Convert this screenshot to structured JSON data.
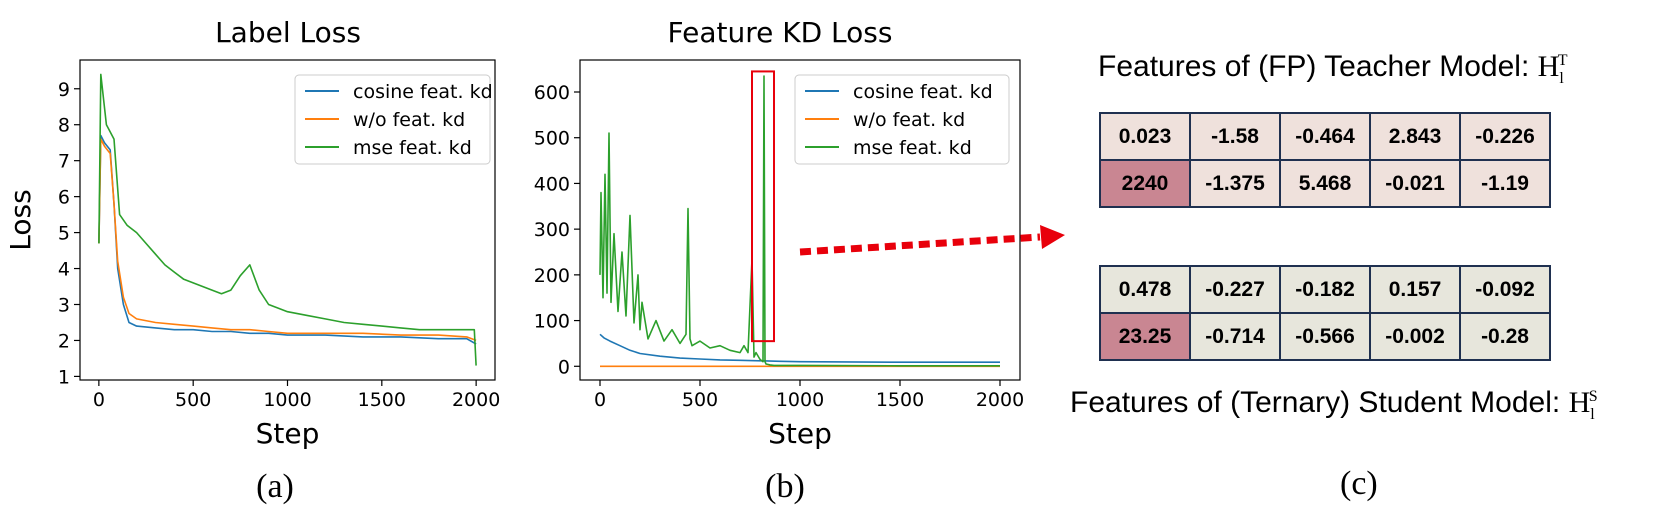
{
  "chart_data": [
    {
      "type": "line",
      "title": "Label Loss",
      "xlabel": "Step",
      "ylabel": "Loss",
      "xlim": [
        -100,
        2100
      ],
      "ylim": [
        0.9,
        9.8
      ],
      "xticks": [
        0,
        500,
        1000,
        1500,
        2000
      ],
      "yticks": [
        1,
        2,
        3,
        4,
        5,
        6,
        7,
        8,
        9
      ],
      "grid": false,
      "legend_position": "top-right",
      "panel_label": "(a)",
      "series": [
        {
          "name": "cosine feat. kd",
          "color": "#1f77b4",
          "x": [
            0,
            10,
            30,
            60,
            80,
            100,
            130,
            160,
            200,
            300,
            400,
            500,
            600,
            700,
            800,
            900,
            1000,
            1200,
            1400,
            1600,
            1800,
            1950,
            2000
          ],
          "y": [
            4.7,
            7.7,
            7.5,
            7.3,
            5.8,
            4.0,
            3.0,
            2.5,
            2.4,
            2.35,
            2.3,
            2.3,
            2.25,
            2.25,
            2.2,
            2.2,
            2.15,
            2.15,
            2.1,
            2.1,
            2.05,
            2.05,
            1.9
          ]
        },
        {
          "name": "w/o feat. kd",
          "color": "#ff7f0e",
          "x": [
            0,
            10,
            30,
            60,
            80,
            100,
            130,
            160,
            200,
            300,
            400,
            500,
            600,
            700,
            800,
            900,
            1000,
            1200,
            1400,
            1600,
            1800,
            1950,
            2000
          ],
          "y": [
            4.7,
            7.6,
            7.4,
            7.2,
            5.8,
            4.2,
            3.2,
            2.75,
            2.6,
            2.5,
            2.45,
            2.4,
            2.35,
            2.3,
            2.3,
            2.25,
            2.2,
            2.2,
            2.2,
            2.15,
            2.15,
            2.1,
            2.0
          ]
        },
        {
          "name": "mse feat. kd",
          "color": "#2ca02c",
          "x": [
            0,
            10,
            40,
            80,
            110,
            150,
            200,
            250,
            300,
            350,
            400,
            450,
            500,
            550,
            600,
            650,
            700,
            750,
            800,
            850,
            900,
            950,
            1000,
            1100,
            1200,
            1300,
            1400,
            1500,
            1600,
            1700,
            1800,
            1900,
            1990,
            2000
          ],
          "y": [
            4.7,
            9.4,
            8.0,
            7.6,
            5.5,
            5.2,
            5.0,
            4.7,
            4.4,
            4.1,
            3.9,
            3.7,
            3.6,
            3.5,
            3.4,
            3.3,
            3.4,
            3.8,
            4.1,
            3.4,
            3.0,
            2.9,
            2.8,
            2.7,
            2.6,
            2.5,
            2.45,
            2.4,
            2.35,
            2.3,
            2.3,
            2.3,
            2.3,
            1.3
          ]
        }
      ]
    },
    {
      "type": "line",
      "title": "Feature KD Loss",
      "xlabel": "Step",
      "ylabel": "",
      "xlim": [
        -100,
        2100
      ],
      "ylim": [
        -30,
        670
      ],
      "xticks": [
        0,
        500,
        1000,
        1500,
        2000
      ],
      "yticks": [
        0,
        100,
        200,
        300,
        400,
        500,
        600
      ],
      "grid": false,
      "legend_position": "top-right",
      "panel_label": "(b)",
      "series": [
        {
          "name": "cosine feat. kd",
          "color": "#1f77b4",
          "x": [
            0,
            20,
            50,
            100,
            150,
            200,
            300,
            400,
            500,
            600,
            700,
            800,
            900,
            1000,
            1500,
            2000
          ],
          "y": [
            70,
            62,
            55,
            45,
            35,
            28,
            22,
            18,
            16,
            14,
            13,
            12,
            11,
            10,
            9,
            9
          ]
        },
        {
          "name": "w/o feat. kd",
          "color": "#ff7f0e",
          "x": [
            0,
            2000
          ],
          "y": [
            0,
            0
          ]
        },
        {
          "name": "mse feat. kd",
          "color": "#2ca02c",
          "x": [
            0,
            5,
            15,
            25,
            35,
            45,
            55,
            70,
            90,
            110,
            130,
            150,
            170,
            190,
            200,
            210,
            240,
            280,
            320,
            360,
            400,
            430,
            440,
            450,
            460,
            500,
            550,
            600,
            650,
            700,
            720,
            740,
            760,
            770,
            780,
            800,
            815,
            820,
            825,
            830,
            850,
            870,
            1000,
            1500,
            2000
          ],
          "y": [
            200,
            380,
            150,
            420,
            160,
            510,
            140,
            290,
            120,
            250,
            110,
            330,
            95,
            200,
            80,
            140,
            60,
            100,
            55,
            80,
            50,
            70,
            345,
            60,
            45,
            55,
            40,
            45,
            35,
            30,
            45,
            30,
            235,
            20,
            30,
            15,
            10,
            635,
            10,
            5,
            3,
            2,
            2,
            1,
            1
          ]
        }
      ],
      "highlight_box": {
        "x": [
          760,
          870
        ],
        "y": [
          55,
          645
        ],
        "color": "#e8000b"
      }
    }
  ],
  "table_panel": {
    "teacher_caption": "Features of (FP) Teacher Model:",
    "teacher_symbol": {
      "base": "H",
      "sub": "l",
      "sup": "T"
    },
    "teacher_rows": [
      [
        "0.023",
        "-1.58",
        "-0.464",
        "2.843",
        "-0.226"
      ],
      [
        "2240",
        "-1.375",
        "5.468",
        "-0.021",
        "-1.19"
      ]
    ],
    "student_rows": [
      [
        "0.478",
        "-0.227",
        "-0.182",
        "0.157",
        "-0.092"
      ],
      [
        "23.25",
        "-0.714",
        "-0.566",
        "-0.002",
        "-0.28"
      ]
    ],
    "student_caption": "Features of (Ternary) Student Model:",
    "student_symbol": {
      "base": "H",
      "sub": "l",
      "sup": "S"
    },
    "panel_label": "(c)",
    "highlight_color": "#c98692",
    "arrow_color": "#e8000b"
  }
}
